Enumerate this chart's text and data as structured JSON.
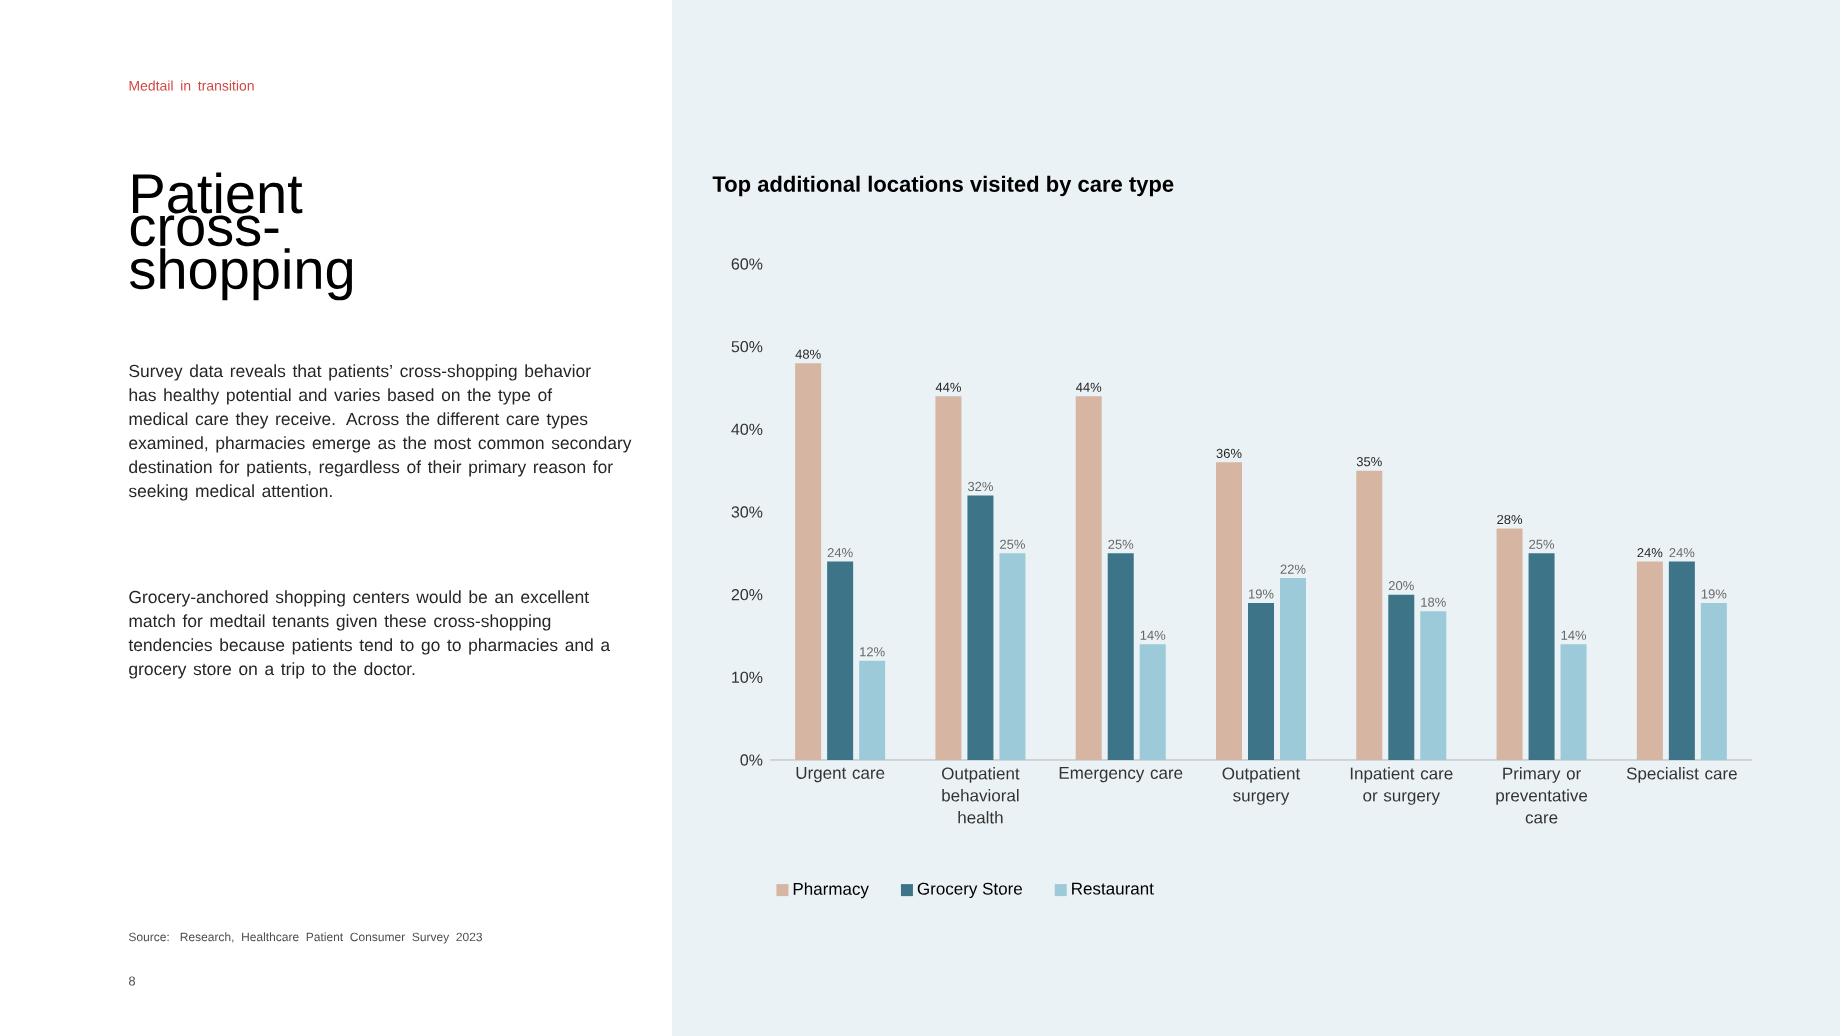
{
  "chart_data": {
    "type": "bar",
    "title": "Top additional locations visited by care type",
    "categories": [
      "Urgent care",
      "Outpatient behavioral health",
      "Emergency care",
      "Outpatient surgery",
      "Inpatient care or surgery",
      "Primary or preventative care",
      "Specialist care"
    ],
    "series": [
      {
        "name": "Pharmacy",
        "color": "#d6b5a3",
        "values": [
          48,
          44,
          44,
          36,
          35,
          28,
          24
        ],
        "value_labels": [
          "48%",
          "44%",
          "44%",
          "36%",
          "35%",
          "28%",
          "24%"
        ]
      },
      {
        "name": "Grocery Store",
        "color": "#3d7487",
        "values": [
          24,
          32,
          25,
          19,
          20,
          25,
          24
        ],
        "value_labels": [
          "24%",
          "32%",
          "25%",
          "19%",
          "20%",
          "25%",
          "24%"
        ]
      },
      {
        "name": "Restaurant",
        "color": "#9ccad9",
        "values": [
          12,
          25,
          14,
          22,
          18,
          14,
          19
        ],
        "value_labels": [
          "12%",
          "25%",
          "14%",
          "22%",
          "18%",
          "14%",
          "19%"
        ]
      }
    ],
    "ylim": [
      0,
      60
    ],
    "yticks": [
      {
        "value": 0,
        "label": "0%"
      },
      {
        "value": 10,
        "label": "10%"
      },
      {
        "value": 20,
        "label": "20%"
      },
      {
        "value": 30,
        "label": "30%"
      },
      {
        "value": 40,
        "label": "40%"
      },
      {
        "value": 50,
        "label": "50%"
      },
      {
        "value": 60,
        "label": "60%"
      }
    ],
    "legend": "bottom",
    "annotations": [
      "Medtail in transition",
      "Patient cross-shopping",
      "Survey data reveals that patients’ cross-shopping behavior has healthy potential and varies based on the type of medical care they receive. Across the different care types examined, pharmacies emerge as the most common secondary destination for patients, regardless of their primary reason for seeking medical attention.",
      "Grocery-anchored shopping centers would be an excellent match for medtail tenants given these cross-shopping tendencies because patients tend to go to pharmacies and a grocery store on a trip to the doctor.",
      "Source: Research, Healthcare Patient Consumer Survey 2023",
      "8"
    ]
  }
}
